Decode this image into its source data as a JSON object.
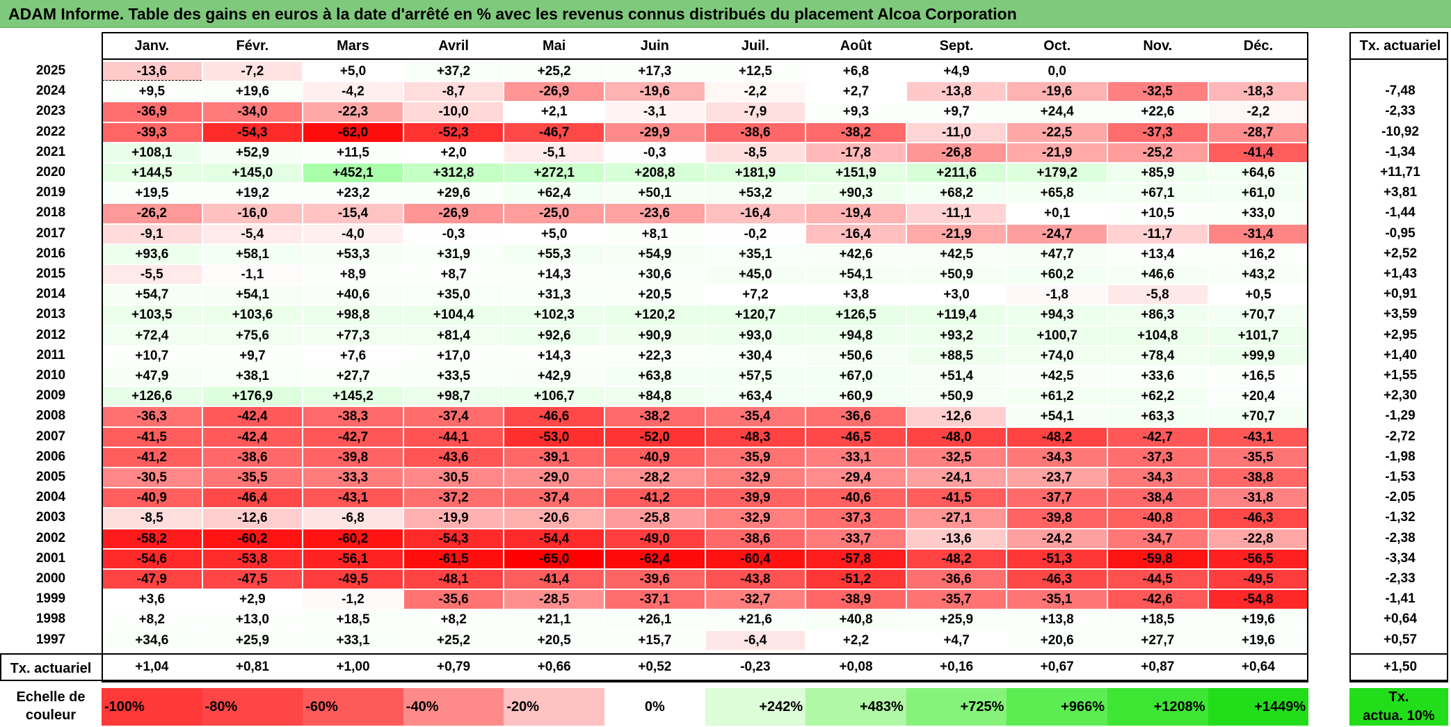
{
  "title": "ADAM Informe. Table des gains en euros à la date d'arrêté en % avec les revenus connus distribués du placement Alcoa Corporation",
  "months": [
    "Janv.",
    "Févr.",
    "Mars",
    "Avril",
    "Mai",
    "Juin",
    "Juil.",
    "Août",
    "Sept.",
    "Oct.",
    "Nov.",
    "Déc."
  ],
  "rate_header": "Tx. actuariel",
  "rows": [
    {
      "year": "2025",
      "values": [
        "-13,6",
        "-7,2",
        "+5,0",
        "+37,2",
        "+25,2",
        "+17,3",
        "+12,5",
        "+6,8",
        "+4,9",
        "0,0",
        "",
        ""
      ],
      "rate": ""
    },
    {
      "year": "2024",
      "values": [
        "+9,5",
        "+19,6",
        "-4,2",
        "-8,7",
        "-26,9",
        "-19,6",
        "-2,2",
        "+2,7",
        "-13,8",
        "-19,6",
        "-32,5",
        "-18,3"
      ],
      "rate": "-7,48"
    },
    {
      "year": "2023",
      "values": [
        "-36,9",
        "-34,0",
        "-22,3",
        "-10,0",
        "+2,1",
        "-3,1",
        "-7,9",
        "+9,3",
        "+9,7",
        "+24,4",
        "+22,6",
        "-2,2"
      ],
      "rate": "-2,33"
    },
    {
      "year": "2022",
      "values": [
        "-39,3",
        "-54,3",
        "-62,0",
        "-52,3",
        "-46,7",
        "-29,9",
        "-38,6",
        "-38,2",
        "-11,0",
        "-22,5",
        "-37,3",
        "-28,7"
      ],
      "rate": "-10,92"
    },
    {
      "year": "2021",
      "values": [
        "+108,1",
        "+52,9",
        "+11,5",
        "+2,0",
        "-5,1",
        "-0,3",
        "-8,5",
        "-17,8",
        "-26,8",
        "-21,9",
        "-25,2",
        "-41,4"
      ],
      "rate": "-1,34"
    },
    {
      "year": "2020",
      "values": [
        "+144,5",
        "+145,0",
        "+452,1",
        "+312,8",
        "+272,1",
        "+208,8",
        "+181,9",
        "+151,9",
        "+211,6",
        "+179,2",
        "+85,9",
        "+64,6"
      ],
      "rate": "+11,71"
    },
    {
      "year": "2019",
      "values": [
        "+19,5",
        "+19,2",
        "+23,2",
        "+29,6",
        "+62,4",
        "+50,1",
        "+53,2",
        "+90,3",
        "+68,2",
        "+65,8",
        "+67,1",
        "+61,0"
      ],
      "rate": "+3,81"
    },
    {
      "year": "2018",
      "values": [
        "-26,2",
        "-16,0",
        "-15,4",
        "-26,9",
        "-25,0",
        "-23,6",
        "-16,4",
        "-19,4",
        "-11,1",
        "+0,1",
        "+10,5",
        "+33,0"
      ],
      "rate": "-1,44"
    },
    {
      "year": "2017",
      "values": [
        "-9,1",
        "-5,4",
        "-4,0",
        "-0,3",
        "+5,0",
        "+8,1",
        "-0,2",
        "-16,4",
        "-21,9",
        "-24,7",
        "-11,7",
        "-31,4"
      ],
      "rate": "-0,95"
    },
    {
      "year": "2016",
      "values": [
        "+93,6",
        "+58,1",
        "+53,3",
        "+31,9",
        "+55,3",
        "+54,9",
        "+35,1",
        "+42,6",
        "+42,5",
        "+47,7",
        "+13,4",
        "+16,2"
      ],
      "rate": "+2,52"
    },
    {
      "year": "2015",
      "values": [
        "-5,5",
        "-1,1",
        "+8,9",
        "+8,7",
        "+14,3",
        "+30,6",
        "+45,0",
        "+54,1",
        "+50,9",
        "+60,2",
        "+46,6",
        "+43,2"
      ],
      "rate": "+1,43"
    },
    {
      "year": "2014",
      "values": [
        "+54,7",
        "+54,1",
        "+40,6",
        "+35,0",
        "+31,3",
        "+20,5",
        "+7,2",
        "+3,8",
        "+3,0",
        "-1,8",
        "-5,8",
        "+0,5"
      ],
      "rate": "+0,91"
    },
    {
      "year": "2013",
      "values": [
        "+103,5",
        "+103,6",
        "+98,8",
        "+104,4",
        "+102,3",
        "+120,2",
        "+120,7",
        "+126,5",
        "+119,4",
        "+94,3",
        "+86,3",
        "+70,7"
      ],
      "rate": "+3,59"
    },
    {
      "year": "2012",
      "values": [
        "+72,4",
        "+75,6",
        "+77,3",
        "+81,4",
        "+92,6",
        "+90,9",
        "+93,0",
        "+94,8",
        "+93,2",
        "+100,7",
        "+104,8",
        "+101,7"
      ],
      "rate": "+2,95"
    },
    {
      "year": "2011",
      "values": [
        "+10,7",
        "+9,7",
        "+7,6",
        "+17,0",
        "+14,3",
        "+22,3",
        "+30,4",
        "+50,6",
        "+88,5",
        "+74,0",
        "+78,4",
        "+99,9"
      ],
      "rate": "+1,40"
    },
    {
      "year": "2010",
      "values": [
        "+47,9",
        "+38,1",
        "+27,7",
        "+33,5",
        "+42,9",
        "+63,8",
        "+57,5",
        "+67,0",
        "+51,4",
        "+42,5",
        "+33,6",
        "+16,5"
      ],
      "rate": "+1,55"
    },
    {
      "year": "2009",
      "values": [
        "+126,6",
        "+176,9",
        "+145,2",
        "+98,7",
        "+106,7",
        "+84,8",
        "+63,4",
        "+60,9",
        "+50,9",
        "+61,2",
        "+62,2",
        "+20,4"
      ],
      "rate": "+2,30"
    },
    {
      "year": "2008",
      "values": [
        "-36,3",
        "-42,4",
        "-38,3",
        "-37,4",
        "-46,6",
        "-38,2",
        "-35,4",
        "-36,6",
        "-12,6",
        "+54,1",
        "+63,3",
        "+70,7"
      ],
      "rate": "-1,29"
    },
    {
      "year": "2007",
      "values": [
        "-41,5",
        "-42,4",
        "-42,7",
        "-44,1",
        "-53,0",
        "-52,0",
        "-48,3",
        "-46,5",
        "-48,0",
        "-48,2",
        "-42,7",
        "-43,1"
      ],
      "rate": "-2,72"
    },
    {
      "year": "2006",
      "values": [
        "-41,2",
        "-38,6",
        "-39,8",
        "-43,6",
        "-39,1",
        "-40,9",
        "-35,9",
        "-33,1",
        "-32,5",
        "-34,3",
        "-37,3",
        "-35,5"
      ],
      "rate": "-1,98"
    },
    {
      "year": "2005",
      "values": [
        "-30,5",
        "-35,5",
        "-33,3",
        "-30,5",
        "-29,0",
        "-28,2",
        "-32,9",
        "-29,4",
        "-24,1",
        "-23,7",
        "-34,3",
        "-38,8"
      ],
      "rate": "-1,53"
    },
    {
      "year": "2004",
      "values": [
        "-40,9",
        "-46,4",
        "-43,1",
        "-37,2",
        "-37,4",
        "-41,2",
        "-39,9",
        "-40,6",
        "-41,5",
        "-37,7",
        "-38,4",
        "-31,8"
      ],
      "rate": "-2,05"
    },
    {
      "year": "2003",
      "values": [
        "-8,5",
        "-12,6",
        "-6,8",
        "-19,9",
        "-20,6",
        "-25,8",
        "-32,9",
        "-37,3",
        "-27,1",
        "-39,8",
        "-40,8",
        "-46,3"
      ],
      "rate": "-1,32"
    },
    {
      "year": "2002",
      "values": [
        "-58,2",
        "-60,2",
        "-60,2",
        "-54,3",
        "-54,4",
        "-49,0",
        "-38,6",
        "-33,7",
        "-13,6",
        "-24,2",
        "-34,7",
        "-22,8"
      ],
      "rate": "-2,38"
    },
    {
      "year": "2001",
      "values": [
        "-54,6",
        "-53,8",
        "-56,1",
        "-61,5",
        "-65,0",
        "-62,4",
        "-60,4",
        "-57,8",
        "-48,2",
        "-51,3",
        "-59,8",
        "-56,5"
      ],
      "rate": "-3,34"
    },
    {
      "year": "2000",
      "values": [
        "-47,9",
        "-47,5",
        "-49,5",
        "-48,1",
        "-41,4",
        "-39,6",
        "-43,8",
        "-51,2",
        "-36,6",
        "-46,3",
        "-44,5",
        "-49,5"
      ],
      "rate": "-2,33"
    },
    {
      "year": "1999",
      "values": [
        "+3,6",
        "+2,9",
        "-1,2",
        "-35,6",
        "-28,5",
        "-37,1",
        "-32,7",
        "-38,9",
        "-35,7",
        "-35,1",
        "-42,6",
        "-54,8"
      ],
      "rate": "-1,41"
    },
    {
      "year": "1998",
      "values": [
        "+8,2",
        "+13,0",
        "+18,5",
        "+8,2",
        "+21,1",
        "+26,1",
        "+21,6",
        "+40,8",
        "+25,9",
        "+13,8",
        "+18,5",
        "+19,6"
      ],
      "rate": "+0,64"
    },
    {
      "year": "1997",
      "values": [
        "+34,6",
        "+25,9",
        "+33,1",
        "+25,2",
        "+20,5",
        "+15,7",
        "-6,4",
        "+2,2",
        "+4,7",
        "+20,6",
        "+27,7",
        "+19,6"
      ],
      "rate": "+0,57"
    }
  ],
  "footer": {
    "label": "Tx. actuariel",
    "values": [
      "+1,04",
      "+0,81",
      "+1,00",
      "+0,79",
      "+0,66",
      "+0,52",
      "-0,23",
      "+0,08",
      "+0,16",
      "+0,67",
      "+0,87",
      "+0,64"
    ],
    "rate": "+1,50"
  },
  "legend": {
    "label_line1": "Echelle de",
    "label_line2": "couleur",
    "items": [
      {
        "text": "-100%",
        "color": "#ff3838",
        "align": "left"
      },
      {
        "text": "-80%",
        "color": "#ff4646",
        "align": "left"
      },
      {
        "text": "-60%",
        "color": "#ff5a5a",
        "align": "left"
      },
      {
        "text": "-40%",
        "color": "#ff8a8a",
        "align": "left"
      },
      {
        "text": "-20%",
        "color": "#ffc2c2",
        "align": "left"
      },
      {
        "text": "0%",
        "color": "#ffffff",
        "align": "center"
      },
      {
        "text": "+242%",
        "color": "#ddfcd8",
        "align": "right"
      },
      {
        "text": "+483%",
        "color": "#b0f7a6",
        "align": "right"
      },
      {
        "text": "+725%",
        "color": "#85f37a",
        "align": "right"
      },
      {
        "text": "+966%",
        "color": "#5ced52",
        "align": "right"
      },
      {
        "text": "+1208%",
        "color": "#3de633",
        "align": "right"
      },
      {
        "text": "+1449%",
        "color": "#22de1a",
        "align": "right"
      }
    ],
    "rate_line1": "Tx.",
    "rate_line2": "actua. 10%",
    "rate_color": "#22de1a"
  }
}
